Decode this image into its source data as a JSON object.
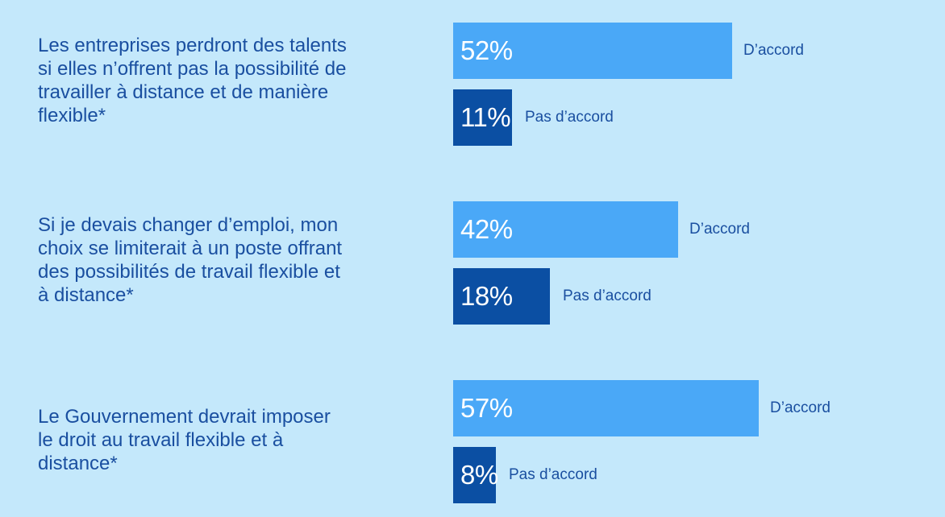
{
  "chart_data": {
    "type": "bar",
    "orientation": "horizontal",
    "categories": [
      "Les entreprises perdront des talents\nsi elles n’offrent pas la possibilité de\ntravailler à distance et de manière\nflexible*",
      "Si je devais changer d’emploi, mon\nchoix se limiterait à un poste offrant\ndes possibilités de travail flexible et\nà distance*",
      "Le Gouvernement devrait imposer\nle droit au travail flexible et à\ndistance*"
    ],
    "series": [
      {
        "name": "D’accord",
        "values": [
          52,
          42,
          57
        ],
        "labels": [
          "52%",
          "42%",
          "57%"
        ]
      },
      {
        "name": "Pas d’accord",
        "values": [
          11,
          18,
          8
        ],
        "labels": [
          "11%",
          "18%",
          "8%"
        ]
      }
    ],
    "unit": "%",
    "colors": {
      "D’accord": "#4aa8f7",
      "Pas d’accord": "#0b4fa3",
      "text": "#1a4fa0",
      "background": "#c4e8fb"
    },
    "grid": false,
    "axes_visible": false,
    "legend": "inline labels beside each bar"
  }
}
